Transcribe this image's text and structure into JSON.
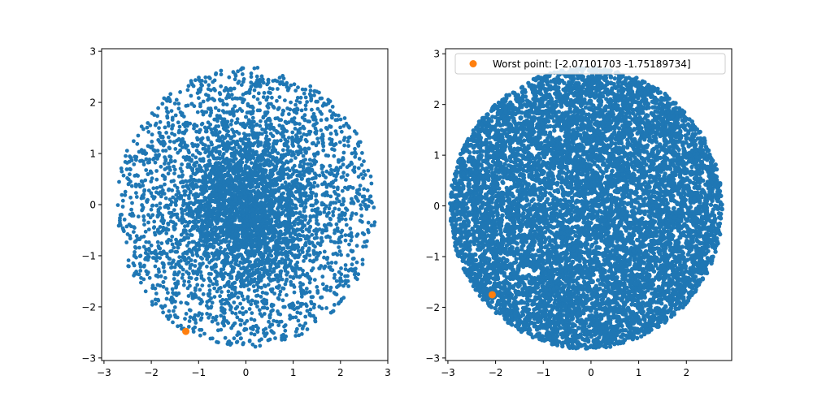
{
  "chart_data": [
    {
      "type": "scatter",
      "title": "",
      "xlabel": "",
      "ylabel": "",
      "xlim": [
        -3.05,
        3.0
      ],
      "ylim": [
        -3.05,
        3.05
      ],
      "xticks": [
        -3,
        -2,
        -1,
        0,
        1,
        2,
        3
      ],
      "yticks": [
        -3,
        -2,
        -1,
        0,
        1,
        2,
        3
      ],
      "xtick_labels": [
        "−3",
        "−2",
        "−1",
        "0",
        "1",
        "2",
        "3"
      ],
      "ytick_labels": [
        "−3",
        "−2",
        "−1",
        "0",
        "1",
        "2",
        "3"
      ],
      "grid": false,
      "series": [
        {
          "color": "#1f77b4",
          "distribution": "disk, radius ~2.75, centered (0, -0.05), dense toward center",
          "approx_count": 5000
        },
        {
          "color": "#ff7f0e",
          "points": [
            [
              -1.27,
              -2.48
            ]
          ]
        }
      ]
    },
    {
      "type": "scatter",
      "title": "",
      "xlabel": "",
      "ylabel": "",
      "xlim": [
        -3.05,
        2.95
      ],
      "ylim": [
        -3.05,
        3.1
      ],
      "xticks": [
        -3,
        -2,
        -1,
        0,
        1,
        2
      ],
      "yticks": [
        -3,
        -2,
        -1,
        0,
        1,
        2,
        3
      ],
      "xtick_labels": [
        "−3",
        "−2",
        "−1",
        "0",
        "1",
        "2"
      ],
      "ytick_labels": [
        "−3",
        "−2",
        "−1",
        "0",
        "1",
        "2",
        "3"
      ],
      "grid": false,
      "legend": {
        "position": "top-right"
      },
      "series": [
        {
          "color": "#1f77b4",
          "distribution": "disk, radius ~2.8, centered (-0.1, -0.05), uniformly dense",
          "approx_count": 9000
        },
        {
          "name": "Worst point: [-2.07101703 -1.75189734]",
          "color": "#ff7f0e",
          "points": [
            [
              -2.07101703,
              -1.75189734
            ]
          ]
        }
      ]
    }
  ]
}
